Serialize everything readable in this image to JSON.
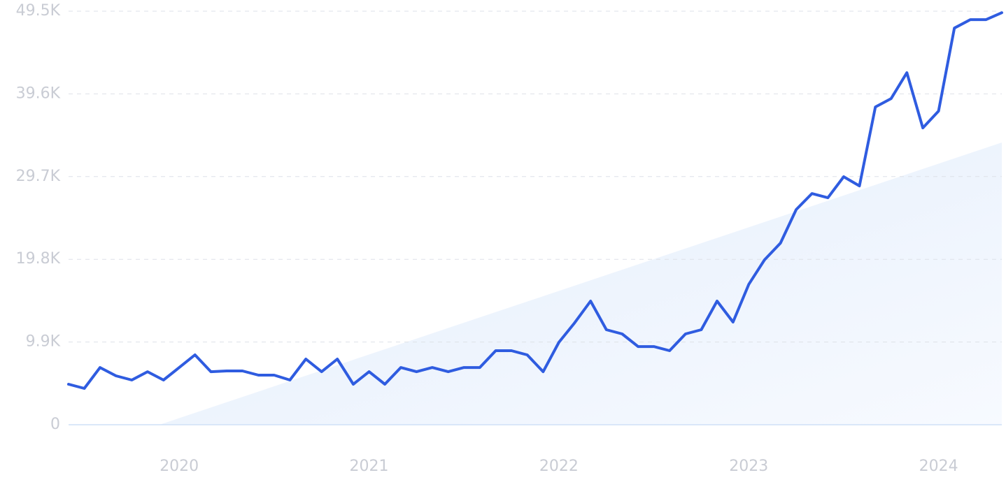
{
  "chart_data": {
    "type": "line",
    "x": [
      2019.417,
      2019.5,
      2019.583,
      2019.667,
      2019.75,
      2019.833,
      2019.917,
      2020.0,
      2020.083,
      2020.167,
      2020.25,
      2020.333,
      2020.417,
      2020.5,
      2020.583,
      2020.667,
      2020.75,
      2020.833,
      2020.917,
      2021.0,
      2021.083,
      2021.167,
      2021.25,
      2021.333,
      2021.417,
      2021.5,
      2021.583,
      2021.667,
      2021.75,
      2021.833,
      2021.917,
      2022.0,
      2022.083,
      2022.167,
      2022.25,
      2022.333,
      2022.417,
      2022.5,
      2022.583,
      2022.667,
      2022.75,
      2022.833,
      2022.917,
      2023.0,
      2023.083,
      2023.167,
      2023.25,
      2023.333,
      2023.417,
      2023.5,
      2023.583,
      2023.667,
      2023.75,
      2023.833,
      2023.917,
      2024.0,
      2024.083,
      2024.167,
      2024.25,
      2024.333
    ],
    "series": [
      {
        "color": "#2f5ce0",
        "values": [
          4850,
          4350,
          6850,
          5850,
          5350,
          6350,
          5350,
          6850,
          8360,
          6350,
          6440,
          6440,
          5940,
          5940,
          5350,
          7860,
          6350,
          7860,
          4850,
          6350,
          4850,
          6850,
          6350,
          6850,
          6350,
          6850,
          6850,
          8860,
          8860,
          8360,
          6350,
          9870,
          12200,
          14800,
          11370,
          10870,
          9360,
          9360,
          8860,
          10870,
          11370,
          14800,
          12290,
          16800,
          19730,
          21740,
          25750,
          27670,
          27170,
          29680,
          28590,
          38040,
          39040,
          42130,
          35530,
          37540,
          47480,
          48490,
          48490,
          49320
        ]
      }
    ],
    "xlim": [
      2019.417,
      2024.333
    ],
    "xticks": [
      2020,
      2021,
      2022,
      2023,
      2024
    ],
    "ylim": [
      0,
      49500
    ],
    "yticks": [
      0,
      {
        "value": 9900,
        "label": "9.9K"
      },
      {
        "value": 19800,
        "label": "19.8K"
      },
      {
        "value": 29700,
        "label": "29.7K"
      },
      {
        "value": 39600,
        "label": "39.6K"
      },
      {
        "value": 49500,
        "label": "49.5K"
      }
    ],
    "grid": true
  }
}
